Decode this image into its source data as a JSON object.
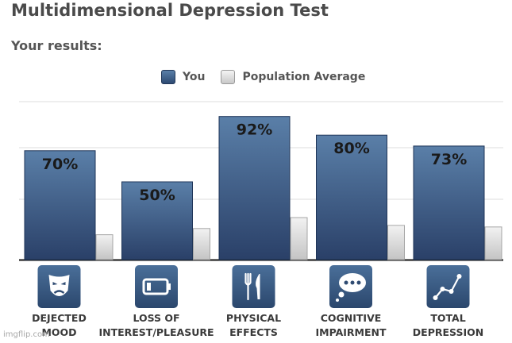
{
  "title": "Multidimensional Depression Test",
  "subtitle": "Your results:",
  "legend": {
    "you": "You",
    "population": "Population Average"
  },
  "watermark": "imgflip.com",
  "colors": {
    "you_top": "#5a7fa8",
    "you_bottom": "#2a4068",
    "pop_top": "#f2f2f2",
    "pop_bottom": "#c4c4c4"
  },
  "chart_data": {
    "type": "bar",
    "categories": [
      [
        "DEJECTED",
        "MOOD"
      ],
      [
        "LOSS OF",
        "INTEREST/PLEASURE"
      ],
      [
        "PHYSICAL",
        "EFFECTS"
      ],
      [
        "COGNITIVE",
        "IMPAIRMENT"
      ],
      [
        "TOTAL",
        "DEPRESSION"
      ]
    ],
    "icons": [
      "sad-mask-icon",
      "low-battery-icon",
      "fork-knife-icon",
      "thought-bubble-icon",
      "line-graph-icon"
    ],
    "series": [
      {
        "name": "You",
        "values": [
          70,
          50,
          92,
          80,
          73
        ],
        "labels": [
          "70%",
          "50%",
          "92%",
          "80%",
          "73%"
        ]
      },
      {
        "name": "Population Average",
        "values": [
          16,
          20,
          27,
          22,
          21
        ]
      }
    ],
    "ylim": [
      0,
      100
    ],
    "grid": true,
    "legend_position": "top-center"
  }
}
